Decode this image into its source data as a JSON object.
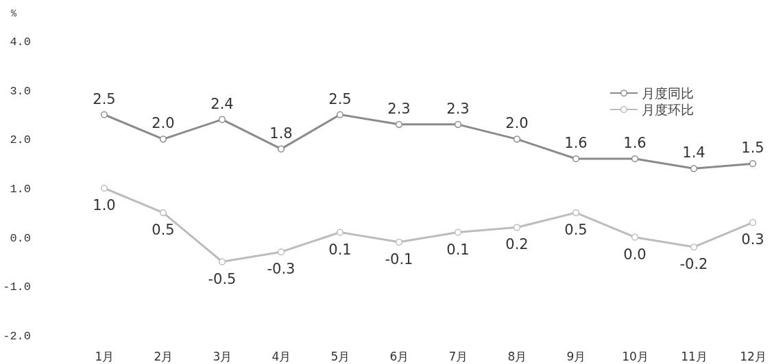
{
  "chart_data": {
    "type": "line",
    "ylabel": "%",
    "categories": [
      "1月",
      "2月",
      "3月",
      "4月",
      "5月",
      "6月",
      "7月",
      "8月",
      "9月",
      "10月",
      "11月",
      "12月"
    ],
    "series": [
      {
        "name": "月度同比",
        "color": "#8a8a8a",
        "values": [
          2.5,
          2.0,
          2.4,
          1.8,
          2.5,
          2.3,
          2.3,
          2.0,
          1.6,
          1.6,
          1.4,
          1.5
        ],
        "value_labels": [
          "2.5",
          "2.0",
          "2.4",
          "1.8",
          "2.5",
          "2.3",
          "2.3",
          "2.0",
          "1.6",
          "1.6",
          "1.4",
          "1.5"
        ]
      },
      {
        "name": "月度环比",
        "color": "#bcbcbc",
        "values": [
          1.0,
          0.5,
          -0.5,
          -0.3,
          0.1,
          -0.1,
          0.1,
          0.2,
          0.5,
          0.0,
          -0.2,
          0.3
        ],
        "value_labels": [
          "1.0",
          "0.5",
          "-0.5",
          "-0.3",
          "0.1",
          "-0.1",
          "0.1",
          "0.2",
          "0.5",
          "0.0",
          "-0.2",
          "0.3"
        ]
      }
    ],
    "ylim": [
      -2,
      4
    ],
    "yticks": [
      {
        "value": -2,
        "label": "-2.0"
      },
      {
        "value": -1,
        "label": "-1.0"
      },
      {
        "value": 0,
        "label": "0.0"
      },
      {
        "value": 1,
        "label": "1.0"
      },
      {
        "value": 2,
        "label": "2.0"
      },
      {
        "value": 3,
        "label": "3.0"
      },
      {
        "value": 4,
        "label": "4.0"
      }
    ],
    "marker": "circle",
    "line_style": "solid",
    "grid": false,
    "legend": "top right"
  }
}
